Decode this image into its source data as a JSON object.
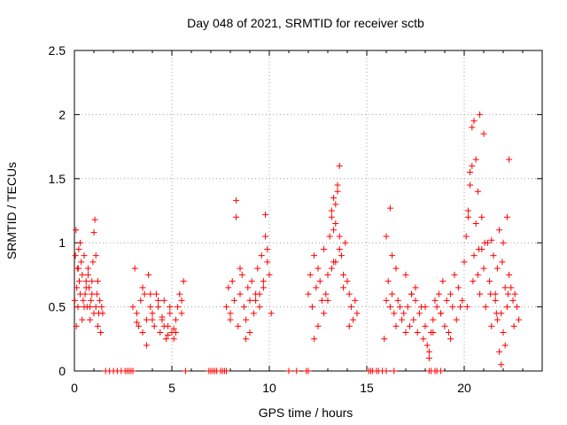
{
  "chart_data": {
    "type": "scatter",
    "title": "Day 048 of 2021, SRMTID for receiver sctb",
    "xlabel": "GPS time / hours",
    "ylabel": "SRMTID / TECUs",
    "xlim": [
      0,
      24
    ],
    "ylim": [
      0,
      2.5
    ],
    "x_ticks": [
      0,
      5,
      10,
      15,
      20
    ],
    "x_tick_labels": [
      "0",
      "5",
      "10",
      "15",
      "20"
    ],
    "y_ticks": [
      0,
      0.5,
      1,
      1.5,
      2,
      2.5
    ],
    "y_tick_labels": [
      "0",
      "0.5",
      "1",
      "1.5",
      "2",
      "2.5"
    ],
    "grid": true,
    "marker": "+",
    "series": [
      {
        "name": "SRMTID",
        "color": "#ff0000",
        "x": [
          0.02,
          0.05,
          0.08,
          0.12,
          0.15,
          0.18,
          0.22,
          0.25,
          0.3,
          0.35,
          0.4,
          0.45,
          0.5,
          0.55,
          0.6,
          0.65,
          0.7,
          0.75,
          0.8,
          0.85,
          0.9,
          0.95,
          1.0,
          1.05,
          1.1,
          1.15,
          1.2,
          1.25,
          1.3,
          1.35,
          1.4,
          1.45,
          0.1,
          0.2,
          0.3,
          0.5,
          0.7,
          0.9,
          1.0,
          1.1,
          1.2,
          0.4,
          0.6,
          0.8,
          3.0,
          3.1,
          3.2,
          3.3,
          3.4,
          3.5,
          3.6,
          3.7,
          3.8,
          3.9,
          4.0,
          4.1,
          4.2,
          4.3,
          4.4,
          4.5,
          4.6,
          4.7,
          4.8,
          4.9,
          5.0,
          5.1,
          5.2,
          5.3,
          5.4,
          5.5,
          5.6,
          3.5,
          3.7,
          4.0,
          4.3,
          4.6,
          4.9,
          5.2,
          5.5,
          3.2,
          3.9,
          4.5,
          4.8,
          5.1,
          7.8,
          7.9,
          8.0,
          8.1,
          8.2,
          8.3,
          8.4,
          8.5,
          8.6,
          8.7,
          8.8,
          8.9,
          9.0,
          9.1,
          9.2,
          9.3,
          9.4,
          9.5,
          9.6,
          9.7,
          9.8,
          9.9,
          10.0,
          10.1,
          8.3,
          8.5,
          9.0,
          9.5,
          9.8,
          9.9,
          8.0,
          8.8,
          9.3,
          9.7,
          12.0,
          12.1,
          12.2,
          12.3,
          12.4,
          12.5,
          12.6,
          12.7,
          12.8,
          12.9,
          13.0,
          13.1,
          13.2,
          13.3,
          13.4,
          13.5,
          13.6,
          13.7,
          13.8,
          13.9,
          14.0,
          14.1,
          14.2,
          14.3,
          14.4,
          14.5,
          13.2,
          13.3,
          13.4,
          13.5,
          13.6,
          13.4,
          13.3,
          13.6,
          12.5,
          12.8,
          13.0,
          13.2,
          13.8,
          14.1,
          12.3,
          15.9,
          16.0,
          16.1,
          16.2,
          16.3,
          16.4,
          16.5,
          16.6,
          16.7,
          16.8,
          16.9,
          17.0,
          17.1,
          17.2,
          17.3,
          17.4,
          17.5,
          17.6,
          17.7,
          17.8,
          17.9,
          18.0,
          18.1,
          18.2,
          18.3,
          18.4,
          18.5,
          18.6,
          18.7,
          18.8,
          18.9,
          19.0,
          19.1,
          19.2,
          19.3,
          19.4,
          19.5,
          19.6,
          19.7,
          19.8,
          19.9,
          16.2,
          16.3,
          17.0,
          17.5,
          18.0,
          18.2,
          18.4,
          16.0,
          16.5,
          17.3,
          18.8,
          19.3,
          20.0,
          20.1,
          20.2,
          20.3,
          20.4,
          20.5,
          20.6,
          20.7,
          20.8,
          20.9,
          21.0,
          21.1,
          21.2,
          21.3,
          21.4,
          21.5,
          21.6,
          21.7,
          21.8,
          21.9,
          22.0,
          22.1,
          22.2,
          22.3,
          22.4,
          22.5,
          22.6,
          22.7,
          22.8,
          20.2,
          20.3,
          20.4,
          20.5,
          20.6,
          20.7,
          20.8,
          20.9,
          21.0,
          21.4,
          21.6,
          21.7,
          21.8,
          21.9,
          22.0,
          22.1,
          22.2,
          22.3,
          20.15,
          20.45,
          20.75,
          21.05,
          21.35,
          21.65,
          21.95,
          22.25,
          22.55,
          1.6,
          1.8,
          2.0,
          2.2,
          2.4,
          2.6,
          2.7,
          2.8,
          2.9,
          3.0,
          5.7,
          6.9,
          7.0,
          7.1,
          7.2,
          7.3,
          7.5,
          7.6,
          7.7,
          7.8,
          11.0,
          11.4,
          11.9,
          12.0,
          15.1,
          15.2,
          15.3,
          15.5,
          15.6,
          15.8,
          16.0,
          16.4,
          18.2,
          18.3,
          18.5,
          18.6,
          18.8
        ],
        "y": [
          0.55,
          0.9,
          1.1,
          0.65,
          0.8,
          0.5,
          0.95,
          0.7,
          0.6,
          0.85,
          0.75,
          0.55,
          0.9,
          0.6,
          0.7,
          0.5,
          0.8,
          0.65,
          0.4,
          0.55,
          0.7,
          0.85,
          1.08,
          1.18,
          0.5,
          0.6,
          0.35,
          0.45,
          0.55,
          0.3,
          0.5,
          0.45,
          0.35,
          0.8,
          1.0,
          0.5,
          0.75,
          0.6,
          0.45,
          0.9,
          0.7,
          0.4,
          0.65,
          0.5,
          0.5,
          0.8,
          0.45,
          0.35,
          0.55,
          0.3,
          0.6,
          0.4,
          0.75,
          0.5,
          0.45,
          0.35,
          0.6,
          0.5,
          0.3,
          0.4,
          0.55,
          0.25,
          0.35,
          0.45,
          0.3,
          0.25,
          0.4,
          0.5,
          0.6,
          0.55,
          0.7,
          0.65,
          0.2,
          0.4,
          0.55,
          0.35,
          0.5,
          0.3,
          0.45,
          0.38,
          0.6,
          0.42,
          0.28,
          0.33,
          0.5,
          0.65,
          0.45,
          0.7,
          0.55,
          1.33,
          0.35,
          0.6,
          0.75,
          0.5,
          0.4,
          0.65,
          0.55,
          0.7,
          0.45,
          0.6,
          0.8,
          0.5,
          0.9,
          0.7,
          1.05,
          0.95,
          0.75,
          0.45,
          1.2,
          0.8,
          0.3,
          0.6,
          1.22,
          0.85,
          0.4,
          0.25,
          0.55,
          0.65,
          0.6,
          0.75,
          0.5,
          0.9,
          0.65,
          0.8,
          0.7,
          0.55,
          0.95,
          0.6,
          0.75,
          1.05,
          1.2,
          0.85,
          1.3,
          1.45,
          1.6,
          0.9,
          0.75,
          1.0,
          0.7,
          0.6,
          0.5,
          0.4,
          0.55,
          0.45,
          1.25,
          1.35,
          1.15,
          1.4,
          0.95,
          0.85,
          1.1,
          1.05,
          0.35,
          0.45,
          0.55,
          0.8,
          0.65,
          0.35,
          0.25,
          0.25,
          0.55,
          0.7,
          0.5,
          0.6,
          0.45,
          0.35,
          0.55,
          0.5,
          0.4,
          0.45,
          0.3,
          0.5,
          0.35,
          0.6,
          0.4,
          0.55,
          0.3,
          0.45,
          0.5,
          0.25,
          0.35,
          0.2,
          0.1,
          0.3,
          0.4,
          0.55,
          0.5,
          0.6,
          0.45,
          0.7,
          0.35,
          0.55,
          0.3,
          0.6,
          0.5,
          0.75,
          0.4,
          0.65,
          0.5,
          0.55,
          1.27,
          0.9,
          0.75,
          0.65,
          0.5,
          0.15,
          0.3,
          1.05,
          0.8,
          0.6,
          0.45,
          0.25,
          0.85,
          1.05,
          1.2,
          1.45,
          1.6,
          0.9,
          1.15,
          0.75,
          0.6,
          0.95,
          0.8,
          0.5,
          1.0,
          0.7,
          0.35,
          0.9,
          0.6,
          0.8,
          1.1,
          0.45,
          0.3,
          0.2,
          0.5,
          0.75,
          0.65,
          0.55,
          0.6,
          0.5,
          0.4,
          1.25,
          1.55,
          1.9,
          1.95,
          1.65,
          1.4,
          2.0,
          1.2,
          1.85,
          1.02,
          0.55,
          0.4,
          0.15,
          0.05,
          1.0,
          0.65,
          1.2,
          1.65,
          0.5,
          0.7,
          0.95,
          1.0,
          0.6,
          0.45,
          0.85,
          0.6,
          0.35,
          0.0,
          0.0,
          0.0,
          0.0,
          0.0,
          0.0,
          0.0,
          0.0,
          0.0,
          0.0,
          0.0,
          0.0,
          0.0,
          0.0,
          0.0,
          0.0,
          0.0,
          0.0,
          0.0,
          0.0,
          0.0,
          0.0,
          0.0,
          0.0,
          0.0,
          0.0,
          0.0,
          0.0,
          0.0,
          0.0,
          0.0,
          0.0,
          0.0,
          0.0,
          0.0,
          0.0,
          0.0
        ]
      }
    ]
  }
}
